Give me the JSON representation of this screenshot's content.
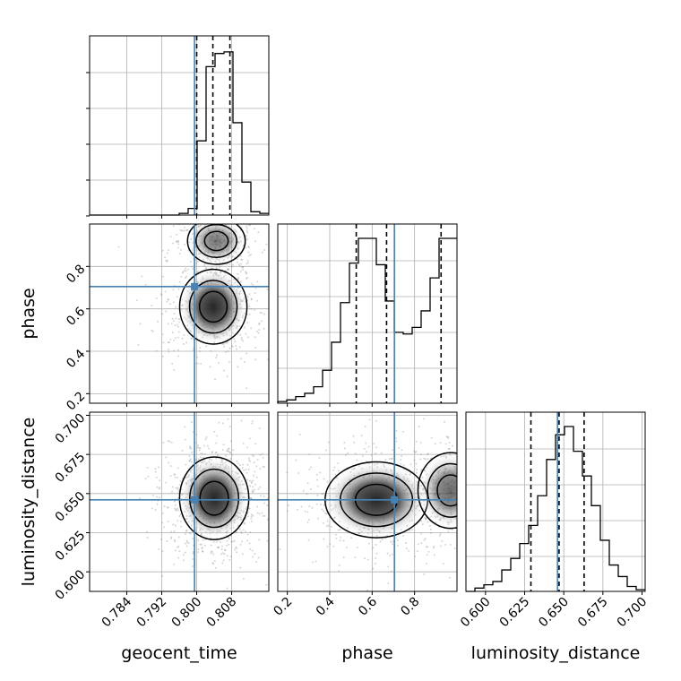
{
  "chart_data": {
    "type": "corner",
    "parameters": [
      "geocent_time",
      "phase",
      "luminosity_distance"
    ],
    "axis_labels": {
      "geocent_time": "geocent_time",
      "phase": "phase",
      "luminosity_distance": "luminosity_distance"
    },
    "ranges": {
      "geocent_time": [
        0.7755,
        0.8165
      ],
      "phase": [
        0.155,
        1.0
      ],
      "luminosity_distance": [
        0.5875,
        0.702
      ]
    },
    "ticks": {
      "geocent_time": {
        "values": [
          0.784,
          0.792,
          0.8,
          0.808
        ],
        "labels": [
          "0.784",
          "0.792",
          "0.800",
          "0.808"
        ]
      },
      "phase": {
        "values": [
          0.2,
          0.4,
          0.6,
          0.8
        ],
        "labels": [
          "0.2",
          "0.4",
          "0.6",
          "0.8"
        ]
      },
      "luminosity_distance": {
        "values": [
          0.6,
          0.625,
          0.65,
          0.675,
          0.7
        ],
        "labels": [
          "0.600",
          "0.625",
          "0.650",
          "0.675",
          "0.700"
        ]
      }
    },
    "injected_values": {
      "geocent_time": 0.7995,
      "phase": 0.705,
      "luminosity_distance": 0.646
    },
    "truth_color": "#4682b4",
    "quantiles": {
      "geocent_time": [
        0.8,
        0.8037,
        0.8076
      ],
      "phase": [
        0.525,
        0.668,
        0.925
      ],
      "luminosity_distance": [
        0.629,
        0.647,
        0.663
      ]
    },
    "histograms": {
      "geocent_time": [
        0,
        0,
        0,
        0,
        0,
        0,
        0,
        0,
        0,
        0,
        0.01,
        0.04,
        0.45,
        0.9,
        0.98,
        0.99,
        0.56,
        0.2,
        0.02,
        0.01
      ],
      "phase": [
        0.01,
        0.02,
        0.04,
        0.06,
        0.1,
        0.2,
        0.37,
        0.61,
        0.85,
        1.0,
        1.0,
        0.84,
        0.62,
        0.43,
        0.42,
        0.46,
        0.56,
        0.76,
        1.0,
        1.0
      ],
      "luminosity_distance": [
        0,
        0.02,
        0.04,
        0.06,
        0.13,
        0.2,
        0.29,
        0.4,
        0.58,
        0.8,
        0.95,
        1.0,
        0.85,
        0.7,
        0.52,
        0.31,
        0.16,
        0.09,
        0.03,
        0.01
      ]
    },
    "grid": true,
    "sample_color": "#888888",
    "contour_color": "#000000"
  }
}
